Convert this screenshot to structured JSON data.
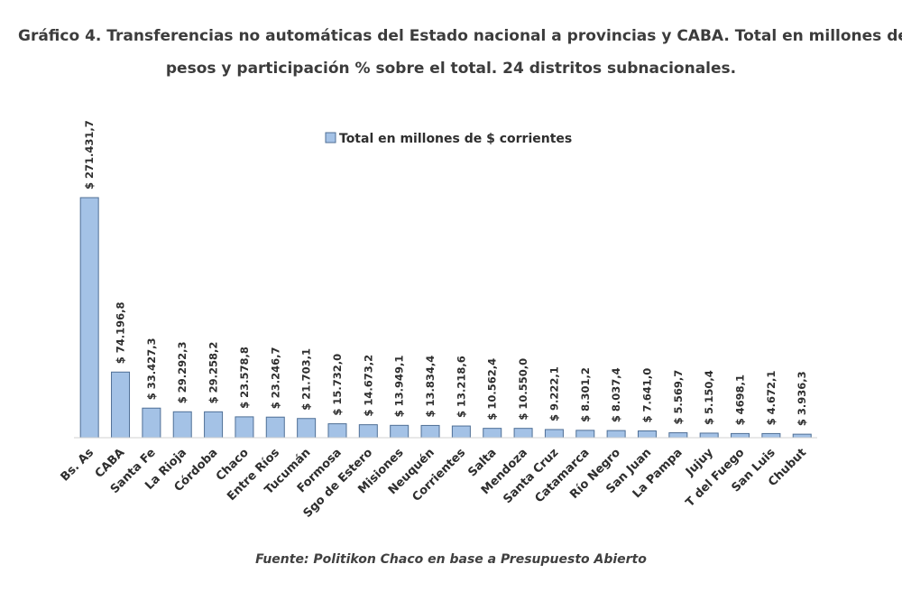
{
  "title_line1": "Gráfico 4. Transferencias no automáticas del Estado nacional a provincias y CABA. Total en millones de",
  "title_line2": "pesos y participación % sobre el total. 24 distritos subnacionales.",
  "source": "Fuente: Politikon Chaco en base a Presupuesto Abierto",
  "colors": {
    "bar_fill": "#a4c2e6",
    "bar_stroke": "#4f6f96",
    "axis": "#d0d0d0"
  },
  "chart_data": {
    "type": "bar",
    "title": "Gráfico 4. Transferencias no automáticas del Estado nacional a provincias y CABA. Total en millones de pesos y participación % sobre el total. 24 distritos subnacionales.",
    "xlabel": "",
    "ylabel": "",
    "ylim": [
      0,
      300000
    ],
    "grid": false,
    "legend_position": "top-center",
    "series": [
      {
        "name": "Total en millones de $ corrientes"
      }
    ],
    "categories": [
      "Bs. As",
      "CABA",
      "Santa Fe",
      "La Rioja",
      "Córdoba",
      "Chaco",
      "Entre Ríos",
      "Tucumán",
      "Formosa",
      "Sgo de Estero",
      "Misiones",
      "Neuquén",
      "Corrientes",
      "Salta",
      "Mendoza",
      "Santa Cruz",
      "Catamarca",
      "Río Negro",
      "San Juan",
      "La Pampa",
      "Jujuy",
      "T del Fuego",
      "San Luis",
      "Chubut"
    ],
    "values": [
      271431.7,
      74196.8,
      33427.3,
      29292.3,
      29258.2,
      23578.8,
      23246.7,
      21703.1,
      15732.0,
      14673.2,
      13949.1,
      13834.4,
      13218.6,
      10562.4,
      10550.0,
      9222.1,
      8301.2,
      8037.4,
      7641.0,
      5569.7,
      5150.4,
      4698.1,
      4672.1,
      3936.3
    ],
    "data_labels": [
      "$ 271.431,7",
      "$ 74.196,8",
      "$ 33.427,3",
      "$ 29.292,3",
      "$ 29.258,2",
      "$ 23.578,8",
      "$ 23.246,7",
      "$ 21.703,1",
      "$ 15.732,0",
      "$ 14.673,2",
      "$ 13.949,1",
      "$ 13.834,4",
      "$ 13.218,6",
      "$ 10.562,4",
      "$ 10.550,0",
      "$ 9.222,1",
      "$ 8.301,2",
      "$ 8.037,4",
      "$ 7.641,0",
      "$ 5.569,7",
      "$ 5.150,4",
      "$ 4698,1",
      "$ 4.672,1",
      "$ 3.936,3"
    ]
  }
}
